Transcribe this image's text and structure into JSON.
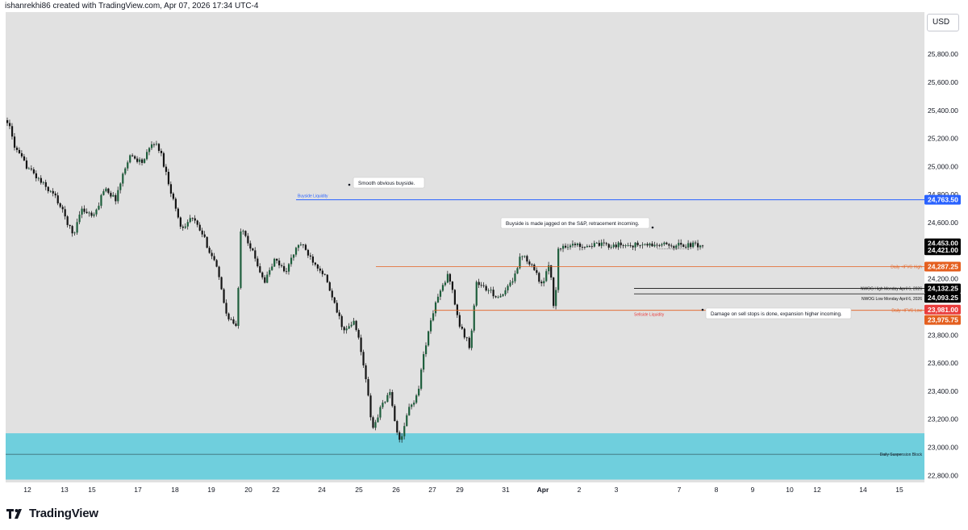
{
  "header": {
    "caption": "ishanrekhi86 created with TradingView.com, Apr 07, 2026 17:34 UTC-4"
  },
  "currency_button": "USD",
  "brand": {
    "name": "TradingView"
  },
  "colors": {
    "chart_bg": "#e1e1e1",
    "candle_up": "#1e5e3c",
    "candle_down": "#141414",
    "blue_line": "#2962ff",
    "orange_line": "#e45f1f",
    "red_label": "#e93d3d",
    "zone": "#6fcfdd"
  },
  "chart_data": {
    "type": "candlestick",
    "symbol_currency": "USD",
    "ylim": [
      22750,
      26100
    ],
    "y_ticks": [
      {
        "value": 25800,
        "label": "25,800.00"
      },
      {
        "value": 25600,
        "label": "25,600.00"
      },
      {
        "value": 25400,
        "label": "25,400.00"
      },
      {
        "value": 25200,
        "label": "25,200.00"
      },
      {
        "value": 25000,
        "label": "25,000.00"
      },
      {
        "value": 24800,
        "label": "24,800.00"
      },
      {
        "value": 24600,
        "label": "24,600.00"
      },
      {
        "value": 24200,
        "label": "24,200.00"
      },
      {
        "value": 23800,
        "label": "23,800.00"
      },
      {
        "value": 23600,
        "label": "23,600.00"
      },
      {
        "value": 23400,
        "label": "23,400.00"
      },
      {
        "value": 23200,
        "label": "23,200.00"
      },
      {
        "value": 23000,
        "label": "23,000.00"
      },
      {
        "value": 22800,
        "label": "22,800.00"
      }
    ],
    "x_ticks": [
      "12",
      "13",
      "15",
      "17",
      "18",
      "19",
      "20",
      "22",
      "24",
      "25",
      "26",
      "27",
      "29",
      "31",
      "Apr",
      "2",
      "3",
      "7",
      "8",
      "9",
      "10",
      "12",
      "14",
      "15"
    ],
    "price_path": [
      {
        "t": 0.0,
        "p": 25330
      },
      {
        "t": 0.012,
        "p": 25120
      },
      {
        "t": 0.025,
        "p": 25020
      },
      {
        "t": 0.05,
        "p": 24880
      },
      {
        "t": 0.07,
        "p": 24780
      },
      {
        "t": 0.085,
        "p": 24620
      },
      {
        "t": 0.095,
        "p": 24500
      },
      {
        "t": 0.105,
        "p": 24700
      },
      {
        "t": 0.125,
        "p": 24640
      },
      {
        "t": 0.14,
        "p": 24860
      },
      {
        "t": 0.155,
        "p": 24760
      },
      {
        "t": 0.175,
        "p": 25080
      },
      {
        "t": 0.195,
        "p": 25030
      },
      {
        "t": 0.21,
        "p": 25180
      },
      {
        "t": 0.22,
        "p": 25110
      },
      {
        "t": 0.235,
        "p": 24830
      },
      {
        "t": 0.25,
        "p": 24560
      },
      {
        "t": 0.265,
        "p": 24640
      },
      {
        "t": 0.28,
        "p": 24520
      },
      {
        "t": 0.3,
        "p": 24300
      },
      {
        "t": 0.315,
        "p": 23950
      },
      {
        "t": 0.33,
        "p": 23850
      },
      {
        "t": 0.336,
        "p": 24600
      },
      {
        "t": 0.35,
        "p": 24420
      },
      {
        "t": 0.37,
        "p": 24180
      },
      {
        "t": 0.385,
        "p": 24340
      },
      {
        "t": 0.4,
        "p": 24250
      },
      {
        "t": 0.42,
        "p": 24460
      },
      {
        "t": 0.44,
        "p": 24330
      },
      {
        "t": 0.455,
        "p": 24240
      },
      {
        "t": 0.47,
        "p": 24020
      },
      {
        "t": 0.485,
        "p": 23820
      },
      {
        "t": 0.5,
        "p": 23900
      },
      {
        "t": 0.515,
        "p": 23510
      },
      {
        "t": 0.525,
        "p": 23120
      },
      {
        "t": 0.54,
        "p": 23320
      },
      {
        "t": 0.55,
        "p": 23380
      },
      {
        "t": 0.565,
        "p": 23010
      },
      {
        "t": 0.575,
        "p": 23250
      },
      {
        "t": 0.59,
        "p": 23380
      },
      {
        "t": 0.6,
        "p": 23700
      },
      {
        "t": 0.615,
        "p": 24020
      },
      {
        "t": 0.635,
        "p": 24240
      },
      {
        "t": 0.65,
        "p": 23870
      },
      {
        "t": 0.665,
        "p": 23720
      },
      {
        "t": 0.675,
        "p": 24180
      },
      {
        "t": 0.69,
        "p": 24120
      },
      {
        "t": 0.71,
        "p": 24060
      },
      {
        "t": 0.725,
        "p": 24180
      },
      {
        "t": 0.74,
        "p": 24380
      },
      {
        "t": 0.755,
        "p": 24300
      },
      {
        "t": 0.77,
        "p": 24140
      },
      {
        "t": 0.78,
        "p": 24330
      },
      {
        "t": 0.787,
        "p": 23940
      },
      {
        "t": 0.792,
        "p": 24400
      },
      {
        "t": 0.8,
        "p": 24440
      }
    ],
    "price_levels": [
      {
        "name": "buyside",
        "value": 24763.5,
        "label": "24,763.50",
        "line_label": "Buyside Liquidity",
        "color": "#2962ff"
      },
      {
        "name": "current-high",
        "value": 24453.0,
        "label": "24,453.00",
        "color": "#000000"
      },
      {
        "name": "current",
        "value": 24421.0,
        "label": "24,421.00",
        "color": "#000000"
      },
      {
        "name": "ifvg-high",
        "value": 24287.25,
        "label": "24,287.25",
        "line_label": "Daily +IFVG High",
        "color": "#e45f1f"
      },
      {
        "name": "nwog-high",
        "value": 24132.25,
        "label": "24,132.25",
        "line_label": "NWOG High Monday April 6, 2026",
        "color": "#000000"
      },
      {
        "name": "nwog-low",
        "value": 24093.25,
        "label": "24,093.25",
        "line_label": "NWOG Low Monday April 6, 2026",
        "color": "#000000"
      },
      {
        "name": "ask",
        "value": 23981.0,
        "label": "23,981.00",
        "color": "#e93d3d"
      },
      {
        "name": "ifvg-low",
        "value": 23975.75,
        "label": "23,975.75",
        "line_label": "Daily +IFVG Low",
        "color": "#e45f1f"
      }
    ],
    "zone": {
      "label": "Daily Suspension Block",
      "top": 23100,
      "bottom": 22770,
      "mid": 22950
    },
    "annotations": [
      {
        "text": "Smooth obvious buyside."
      },
      {
        "text": "Buyside is made jagged on the S&P, retracement incoming."
      },
      {
        "text": "Damage on sell stops is done, expansion higher incoming."
      }
    ],
    "sellside_label": "Sellside Liquidity",
    "grid": false
  }
}
